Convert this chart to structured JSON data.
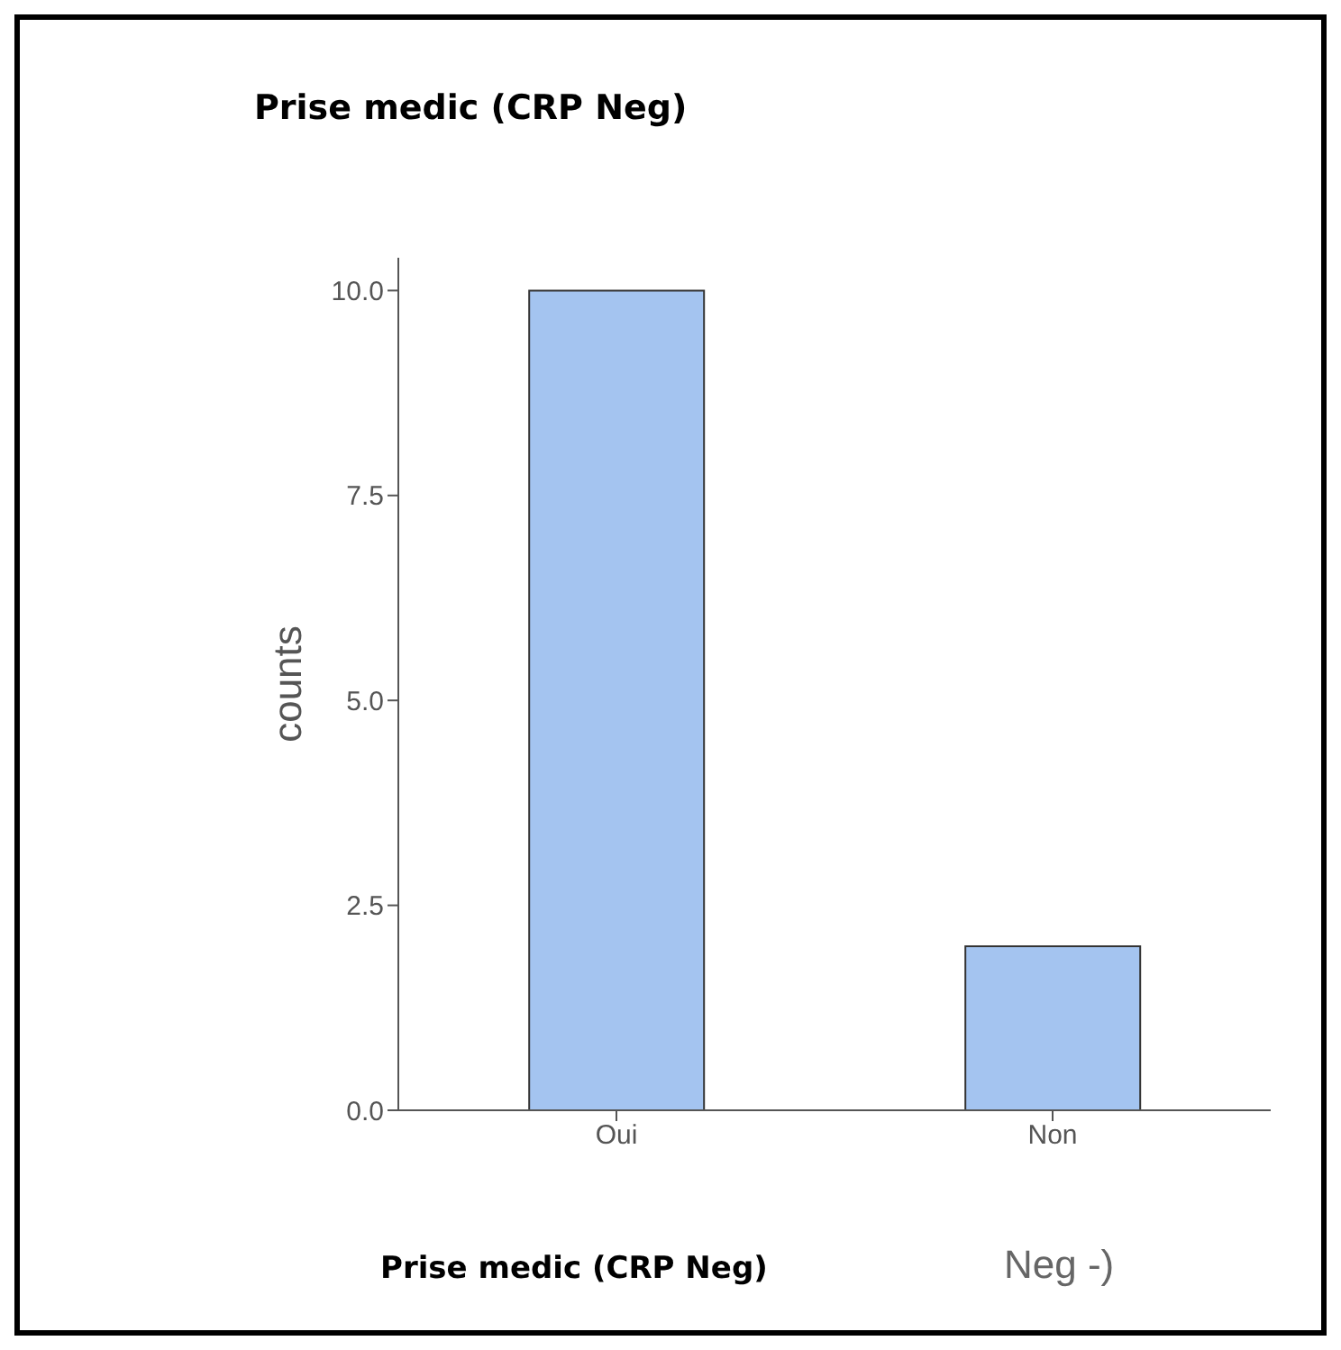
{
  "chart_data": {
    "type": "bar",
    "title": "Prise medic (CRP Neg)",
    "xlabel": "Prise medic (CRP Neg)",
    "ylabel": "counts",
    "annotations": [
      "Neg -)"
    ],
    "categories": [
      "Oui",
      "Non"
    ],
    "values": [
      10,
      2
    ],
    "color": "#a4c4f0",
    "ylim": [
      0,
      10.4
    ],
    "yticks": [
      {
        "value": 0,
        "label": "0.0"
      },
      {
        "value": 2.5,
        "label": "2.5"
      },
      {
        "value": 5,
        "label": "5.0"
      },
      {
        "value": 7.5,
        "label": "7.5"
      },
      {
        "value": 10,
        "label": "10.0"
      }
    ]
  }
}
